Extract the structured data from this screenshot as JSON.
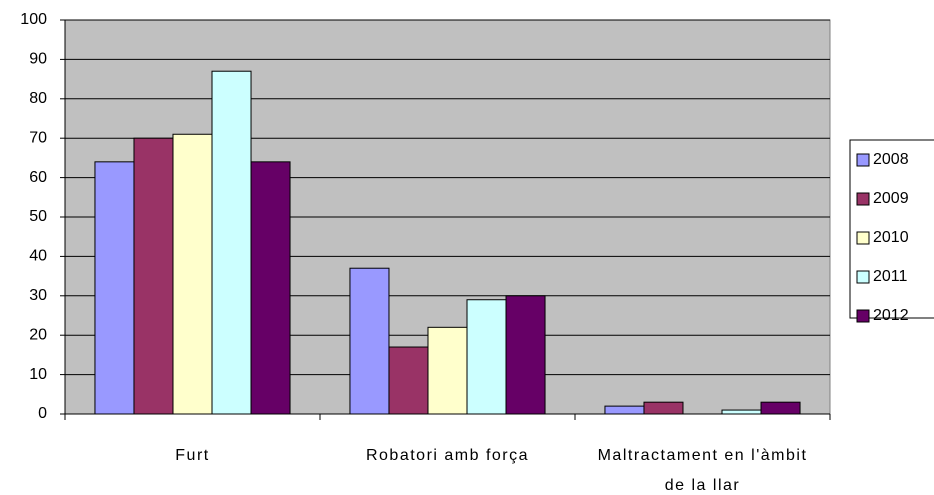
{
  "chart_data": {
    "type": "bar",
    "categories": [
      "Furt",
      "Robatori amb força",
      "Maltractament en l'àmbit de la llar"
    ],
    "series": [
      {
        "name": "2008",
        "color": "#9999ff",
        "values": [
          64,
          37,
          2
        ]
      },
      {
        "name": "2009",
        "color": "#993366",
        "values": [
          70,
          17,
          3
        ]
      },
      {
        "name": "2010",
        "color": "#ffffcc",
        "values": [
          71,
          22,
          0
        ]
      },
      {
        "name": "2011",
        "color": "#ccffff",
        "values": [
          87,
          29,
          1
        ]
      },
      {
        "name": "2012",
        "color": "#660066",
        "values": [
          64,
          30,
          3
        ]
      }
    ],
    "ylim": [
      0,
      100
    ],
    "yticks": [
      0,
      10,
      20,
      30,
      40,
      50,
      60,
      70,
      80,
      90,
      100
    ],
    "grid": true,
    "legend": "right"
  }
}
